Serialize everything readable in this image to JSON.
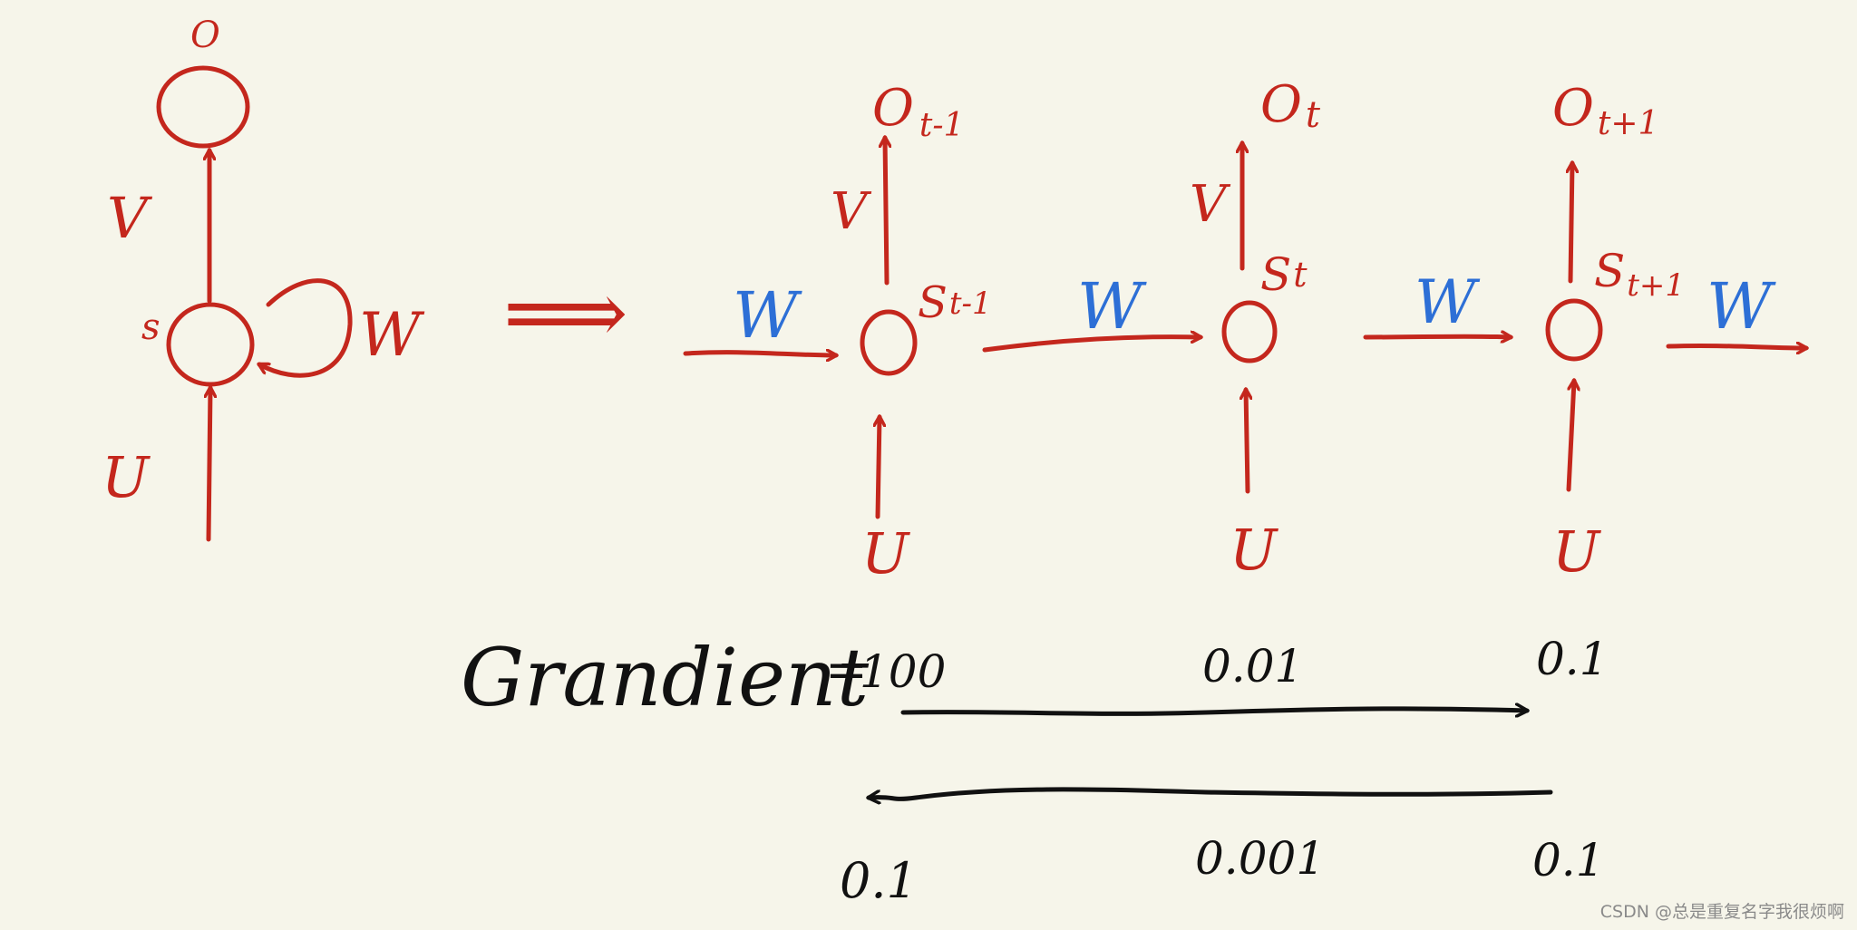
{
  "folded": {
    "output_label": "O",
    "state_label": "s",
    "v_label": "V",
    "w_label": "W",
    "u_label": "U"
  },
  "implies_symbol": "⟹",
  "unfolded": {
    "steps": [
      {
        "output_label": "O",
        "output_sub": "t-1",
        "state_label": "S",
        "state_sub": "t-1",
        "v_label": "V",
        "u_label": "U"
      },
      {
        "output_label": "O",
        "output_sub": "t",
        "state_label": "S",
        "state_sub": "t",
        "v_label": "V",
        "u_label": "U"
      },
      {
        "output_label": "O",
        "output_sub": "t+1",
        "state_label": "S",
        "state_sub": "t+1",
        "u_label": "U"
      }
    ],
    "w_labels": [
      "W",
      "W",
      "W",
      "W"
    ]
  },
  "gradient": {
    "label": "Grandient",
    "equals": "=",
    "forward_values": [
      "100",
      "0.01",
      "0.1"
    ],
    "backward_values": [
      "0.1",
      "0.001",
      "0.1"
    ]
  },
  "watermark": "CSDN @总是重复名字我很烦啊",
  "colors": {
    "background": "#f6f5ea",
    "ink_red": "#c4271d",
    "ink_blue": "#2d6fd6",
    "ink_black": "#111111"
  }
}
